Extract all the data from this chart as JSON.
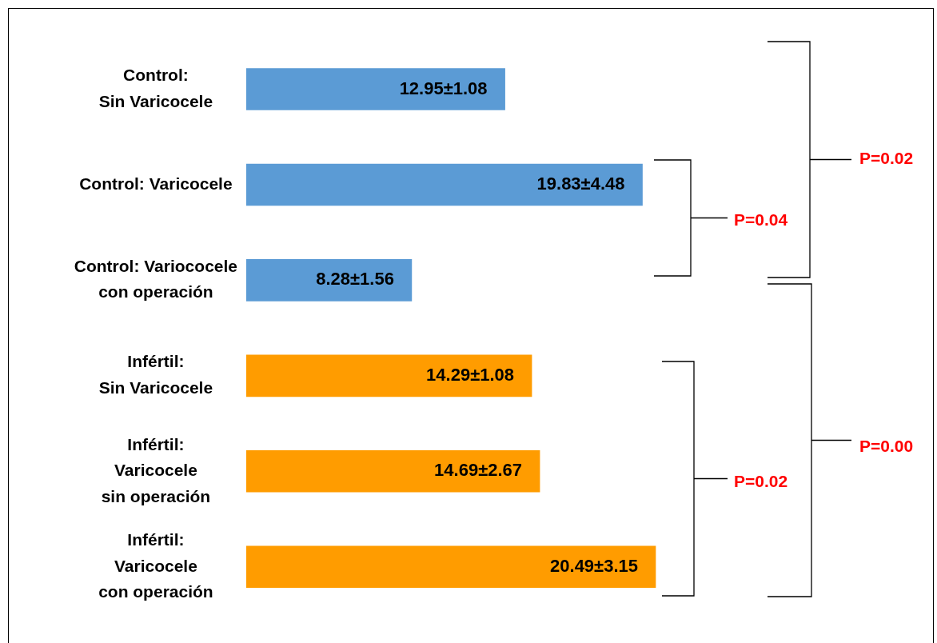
{
  "chart_data": {
    "type": "bar",
    "orientation": "horizontal",
    "categories": [
      "Control:\nSin Varicocele",
      "Control: Varicocele",
      "Control: Variococele\ncon operación",
      "Infértil:\nSin Varicocele",
      "Infértil:\nVaricocele\nsin operación",
      "Infértil:\nVaricocele\ncon operación"
    ],
    "values": [
      12.95,
      19.83,
      8.28,
      14.29,
      14.69,
      20.49
    ],
    "colors": [
      "#5b9bd5",
      "#5b9bd5",
      "#5b9bd5",
      "#ff9c00",
      "#ff9c00",
      "#ff9c00"
    ],
    "value_labels": [
      "12.95±1.08",
      "19.83±4.48",
      "8.28±1.56",
      "14.29±1.08",
      "14.69±2.67",
      "20.49±3.15"
    ],
    "annotations": [
      "P=0.02",
      "P=0.04",
      "P=0.00",
      "P=0.02"
    ],
    "legend": false
  }
}
